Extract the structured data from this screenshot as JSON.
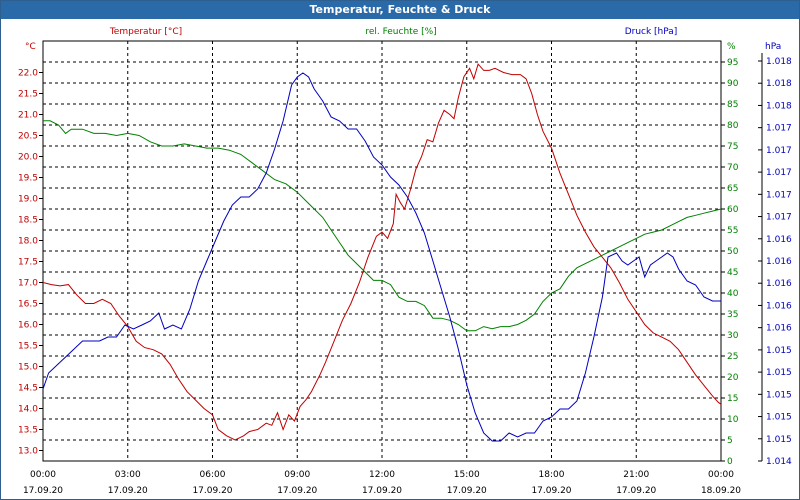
{
  "window": {
    "title": "Temperatur, Feuchte & Druck"
  },
  "chart_data": {
    "type": "line",
    "title": "Temperatur, Feuchte & Druck",
    "grid": true,
    "x_ticks": [
      {
        "time": "00:00",
        "date": "17.09.20"
      },
      {
        "time": "03:00",
        "date": "17.09.20"
      },
      {
        "time": "06:00",
        "date": "17.09.20"
      },
      {
        "time": "09:00",
        "date": "17.09.20"
      },
      {
        "time": "12:00",
        "date": "17.09.20"
      },
      {
        "time": "15:00",
        "date": "17.09.20"
      },
      {
        "time": "18:00",
        "date": "17.09.20"
      },
      {
        "time": "21:00",
        "date": "17.09.20"
      },
      {
        "time": "00:00",
        "date": "18.09.20"
      }
    ],
    "axes": {
      "temperature": {
        "header": "Temperatur [°C]",
        "unit": "°C",
        "color": "#c00000",
        "range": [
          12.75,
          22.75
        ],
        "ticks": [
          "13.0",
          "13.5",
          "14.0",
          "14.5",
          "15.0",
          "15.5",
          "16.0",
          "16.5",
          "17.0",
          "17.5",
          "18.0",
          "18.5",
          "19.0",
          "19.5",
          "20.0",
          "20.5",
          "21.0",
          "21.5",
          "22.0"
        ]
      },
      "humidity": {
        "header": "rel. Feuchte [%]",
        "unit": "%",
        "color": "#008000",
        "range": [
          0,
          100
        ],
        "ticks": [
          "0",
          "5",
          "10",
          "15",
          "20",
          "25",
          "30",
          "35",
          "40",
          "45",
          "50",
          "55",
          "60",
          "65",
          "70",
          "75",
          "80",
          "85",
          "90",
          "95"
        ]
      },
      "pressure": {
        "header": "Druck [hPa]",
        "unit": "hPa",
        "color": "#0000c0",
        "ticks": [
          "1.014",
          "1.015",
          "1.015",
          "1.015",
          "1.015",
          "1.015",
          "1.016",
          "1.016",
          "1.016",
          "1.016",
          "1.016",
          "1.017",
          "1.017",
          "1.017",
          "1.017",
          "1.017",
          "1.018",
          "1.018",
          "1.018"
        ]
      }
    },
    "series": [
      {
        "name": "Temperatur [°C]",
        "axis": "temperature",
        "color": "#c00000",
        "points": [
          [
            0,
            17.0
          ],
          [
            0.3,
            16.95
          ],
          [
            0.6,
            16.92
          ],
          [
            0.9,
            16.95
          ],
          [
            1.2,
            16.7
          ],
          [
            1.5,
            16.5
          ],
          [
            1.8,
            16.5
          ],
          [
            2.1,
            16.6
          ],
          [
            2.4,
            16.5
          ],
          [
            2.7,
            16.2
          ],
          [
            3.0,
            15.95
          ],
          [
            3.3,
            15.6
          ],
          [
            3.6,
            15.45
          ],
          [
            3.9,
            15.4
          ],
          [
            4.2,
            15.3
          ],
          [
            4.5,
            15.05
          ],
          [
            4.8,
            14.7
          ],
          [
            5.1,
            14.4
          ],
          [
            5.4,
            14.2
          ],
          [
            5.7,
            14.0
          ],
          [
            6.0,
            13.85
          ],
          [
            6.2,
            13.5
          ],
          [
            6.5,
            13.35
          ],
          [
            6.8,
            13.25
          ],
          [
            7.1,
            13.35
          ],
          [
            7.3,
            13.45
          ],
          [
            7.6,
            13.5
          ],
          [
            7.9,
            13.65
          ],
          [
            8.1,
            13.6
          ],
          [
            8.3,
            13.9
          ],
          [
            8.5,
            13.5
          ],
          [
            8.7,
            13.85
          ],
          [
            8.9,
            13.7
          ],
          [
            9.1,
            14.05
          ],
          [
            9.3,
            14.2
          ],
          [
            9.5,
            14.4
          ],
          [
            9.8,
            14.8
          ],
          [
            10.0,
            15.1
          ],
          [
            10.3,
            15.6
          ],
          [
            10.6,
            16.1
          ],
          [
            10.9,
            16.5
          ],
          [
            11.2,
            17.0
          ],
          [
            11.5,
            17.6
          ],
          [
            11.8,
            18.1
          ],
          [
            12.0,
            18.2
          ],
          [
            12.2,
            18.05
          ],
          [
            12.4,
            18.4
          ],
          [
            12.5,
            19.1
          ],
          [
            12.65,
            18.9
          ],
          [
            12.8,
            18.75
          ],
          [
            13.0,
            19.2
          ],
          [
            13.2,
            19.7
          ],
          [
            13.4,
            20.0
          ],
          [
            13.6,
            20.4
          ],
          [
            13.8,
            20.35
          ],
          [
            14.0,
            20.8
          ],
          [
            14.2,
            21.1
          ],
          [
            14.4,
            21.0
          ],
          [
            14.55,
            20.9
          ],
          [
            14.7,
            21.4
          ],
          [
            14.9,
            21.9
          ],
          [
            15.1,
            22.1
          ],
          [
            15.25,
            21.85
          ],
          [
            15.4,
            22.2
          ],
          [
            15.6,
            22.05
          ],
          [
            15.8,
            22.05
          ],
          [
            16.0,
            22.1
          ],
          [
            16.3,
            22.0
          ],
          [
            16.6,
            21.95
          ],
          [
            16.9,
            21.95
          ],
          [
            17.1,
            21.85
          ],
          [
            17.3,
            21.5
          ],
          [
            17.5,
            21.0
          ],
          [
            17.7,
            20.6
          ],
          [
            18.0,
            20.2
          ],
          [
            18.3,
            19.6
          ],
          [
            18.6,
            19.1
          ],
          [
            18.9,
            18.6
          ],
          [
            19.2,
            18.2
          ],
          [
            19.5,
            17.85
          ],
          [
            19.8,
            17.6
          ],
          [
            20.1,
            17.35
          ],
          [
            20.4,
            17.0
          ],
          [
            20.7,
            16.6
          ],
          [
            21.0,
            16.3
          ],
          [
            21.3,
            16.0
          ],
          [
            21.6,
            15.8
          ],
          [
            21.9,
            15.7
          ],
          [
            22.2,
            15.6
          ],
          [
            22.5,
            15.4
          ],
          [
            22.8,
            15.1
          ],
          [
            23.1,
            14.8
          ],
          [
            23.4,
            14.55
          ],
          [
            23.7,
            14.3
          ],
          [
            23.9,
            14.15
          ],
          [
            24.0,
            14.1
          ]
        ]
      },
      {
        "name": "rel. Feuchte [%]",
        "axis": "humidity",
        "color": "#008000",
        "points": [
          [
            0,
            81
          ],
          [
            0.25,
            81
          ],
          [
            0.55,
            80
          ],
          [
            0.8,
            78
          ],
          [
            1.0,
            79
          ],
          [
            1.4,
            79
          ],
          [
            1.8,
            78
          ],
          [
            2.2,
            78
          ],
          [
            2.6,
            77.5
          ],
          [
            3.0,
            78
          ],
          [
            3.4,
            77.5
          ],
          [
            3.8,
            76
          ],
          [
            4.2,
            75
          ],
          [
            4.6,
            75
          ],
          [
            5.0,
            75.5
          ],
          [
            5.4,
            75
          ],
          [
            5.8,
            74.5
          ],
          [
            6.2,
            74.5
          ],
          [
            6.6,
            74
          ],
          [
            7.0,
            73
          ],
          [
            7.4,
            71
          ],
          [
            7.8,
            69
          ],
          [
            8.2,
            67
          ],
          [
            8.6,
            66
          ],
          [
            9.0,
            64
          ],
          [
            9.3,
            62
          ],
          [
            9.6,
            60
          ],
          [
            9.9,
            58
          ],
          [
            10.2,
            55
          ],
          [
            10.5,
            52
          ],
          [
            10.8,
            49
          ],
          [
            11.1,
            47
          ],
          [
            11.4,
            45
          ],
          [
            11.7,
            43
          ],
          [
            12.0,
            43
          ],
          [
            12.3,
            42
          ],
          [
            12.6,
            39
          ],
          [
            12.9,
            38
          ],
          [
            13.2,
            38
          ],
          [
            13.5,
            37
          ],
          [
            13.8,
            34
          ],
          [
            14.1,
            34
          ],
          [
            14.4,
            33.5
          ],
          [
            14.7,
            32.5
          ],
          [
            15.0,
            31
          ],
          [
            15.3,
            31
          ],
          [
            15.6,
            32
          ],
          [
            15.9,
            31.5
          ],
          [
            16.2,
            32
          ],
          [
            16.5,
            32
          ],
          [
            16.8,
            32.5
          ],
          [
            17.1,
            33.5
          ],
          [
            17.4,
            35
          ],
          [
            17.7,
            38
          ],
          [
            18.0,
            40
          ],
          [
            18.3,
            41
          ],
          [
            18.6,
            44
          ],
          [
            18.9,
            46
          ],
          [
            19.2,
            47
          ],
          [
            19.5,
            48
          ],
          [
            19.8,
            49
          ],
          [
            20.1,
            50
          ],
          [
            20.4,
            51
          ],
          [
            20.7,
            52
          ],
          [
            21.0,
            53
          ],
          [
            21.3,
            54
          ],
          [
            21.6,
            54.5
          ],
          [
            21.9,
            55
          ],
          [
            22.2,
            56
          ],
          [
            22.5,
            57
          ],
          [
            22.8,
            58
          ],
          [
            23.1,
            58.5
          ],
          [
            23.4,
            59
          ],
          [
            23.7,
            59.5
          ],
          [
            24.0,
            60
          ]
        ]
      },
      {
        "name": "Druck [hPa]",
        "axis": "pressure",
        "color": "#0000c0",
        "points": [
          [
            0,
            18
          ],
          [
            0.2,
            22
          ],
          [
            0.5,
            24
          ],
          [
            0.8,
            26
          ],
          [
            1.1,
            28
          ],
          [
            1.4,
            30
          ],
          [
            1.7,
            30
          ],
          [
            2.0,
            30
          ],
          [
            2.3,
            31
          ],
          [
            2.6,
            31
          ],
          [
            2.9,
            34
          ],
          [
            3.2,
            33
          ],
          [
            3.5,
            34
          ],
          [
            3.8,
            35
          ],
          [
            4.1,
            37
          ],
          [
            4.3,
            33
          ],
          [
            4.6,
            34
          ],
          [
            4.9,
            33
          ],
          [
            5.2,
            38
          ],
          [
            5.5,
            45
          ],
          [
            5.8,
            50
          ],
          [
            6.1,
            55
          ],
          [
            6.4,
            60
          ],
          [
            6.7,
            64
          ],
          [
            7.0,
            66
          ],
          [
            7.3,
            66
          ],
          [
            7.6,
            68
          ],
          [
            7.9,
            72
          ],
          [
            8.2,
            78
          ],
          [
            8.5,
            85
          ],
          [
            8.8,
            94
          ],
          [
            9.0,
            96
          ],
          [
            9.2,
            97
          ],
          [
            9.4,
            96
          ],
          [
            9.6,
            93
          ],
          [
            9.9,
            90
          ],
          [
            10.2,
            86
          ],
          [
            10.5,
            85
          ],
          [
            10.8,
            83
          ],
          [
            11.1,
            83
          ],
          [
            11.4,
            80
          ],
          [
            11.7,
            76
          ],
          [
            12.0,
            74
          ],
          [
            12.3,
            71
          ],
          [
            12.6,
            69
          ],
          [
            12.9,
            66
          ],
          [
            13.2,
            62
          ],
          [
            13.5,
            57
          ],
          [
            13.8,
            50
          ],
          [
            14.1,
            43
          ],
          [
            14.4,
            36
          ],
          [
            14.7,
            28
          ],
          [
            15.0,
            19
          ],
          [
            15.3,
            12
          ],
          [
            15.6,
            7
          ],
          [
            15.9,
            5
          ],
          [
            16.2,
            5
          ],
          [
            16.5,
            7
          ],
          [
            16.8,
            6
          ],
          [
            17.1,
            7
          ],
          [
            17.4,
            7
          ],
          [
            17.7,
            10
          ],
          [
            18.0,
            11
          ],
          [
            18.3,
            13
          ],
          [
            18.6,
            13
          ],
          [
            18.9,
            15
          ],
          [
            19.2,
            22
          ],
          [
            19.5,
            31
          ],
          [
            19.8,
            41
          ],
          [
            20.0,
            51
          ],
          [
            20.3,
            52
          ],
          [
            20.5,
            50
          ],
          [
            20.7,
            49
          ],
          [
            20.9,
            50
          ],
          [
            21.1,
            51
          ],
          [
            21.3,
            46
          ],
          [
            21.5,
            49
          ],
          [
            21.7,
            50
          ],
          [
            21.9,
            51
          ],
          [
            22.1,
            52
          ],
          [
            22.3,
            51
          ],
          [
            22.5,
            48
          ],
          [
            22.8,
            45
          ],
          [
            23.1,
            44
          ],
          [
            23.4,
            41
          ],
          [
            23.7,
            40
          ],
          [
            24.0,
            40
          ]
        ]
      }
    ]
  }
}
